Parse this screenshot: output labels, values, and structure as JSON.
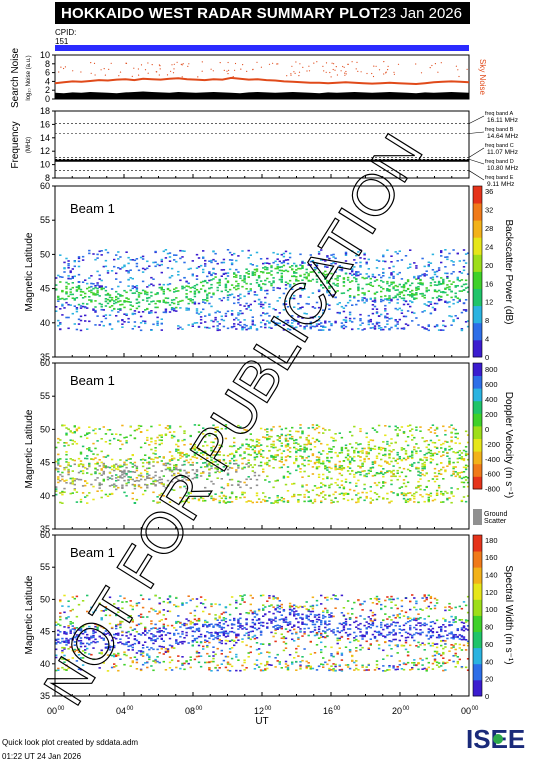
{
  "header": {
    "title": "HOKKAIDO WEST RADAR SUMMARY PLOT",
    "date": "23 Jan 2026"
  },
  "cpid": {
    "label": "CPID:",
    "value": "151",
    "bar_color": "#2b2bff"
  },
  "watermark": "NOT FOR PUBLICATION",
  "footer": {
    "credit": "Quick look plot created by sddata.adm",
    "timestamp": "01:22 UT 24 Jan 2026"
  },
  "logo_text": "ISEE",
  "chart_data": [
    {
      "type": "line",
      "ylabel_top": "Search Noise",
      "ylabel_sub": "log₁₀ Noise (a.u.)",
      "right_label": "Sky Noise",
      "ylim": [
        0,
        10
      ],
      "yticks": [
        "0",
        "2",
        "4",
        "6",
        "8",
        "10"
      ],
      "series": [
        {
          "color": "#000000",
          "values": [
            1.4,
            1.3,
            1.5,
            1.4,
            1.6,
            1.5,
            1.4,
            1.3,
            1.5,
            1.6,
            1.7,
            1.6,
            1.5,
            1.4,
            1.6,
            1.5,
            1.4,
            1.5,
            1.6,
            1.5,
            1.4,
            1.3,
            1.5,
            1.6,
            1.5,
            1.4,
            1.5,
            1.6,
            1.5,
            1.4,
            1.3,
            1.5,
            1.4,
            1.5,
            1.6,
            1.5,
            1.4,
            1.5,
            1.6,
            1.5,
            1.4,
            1.3,
            1.5,
            1.4,
            1.5,
            1.6,
            1.5,
            1.4
          ]
        },
        {
          "name": "Sky Noise",
          "color": "#e04a1a",
          "values": [
            3.6,
            3.8,
            4.0,
            3.9,
            4.1,
            4.3,
            4.2,
            4.4,
            4.5,
            4.3,
            4.6,
            4.5,
            4.4,
            4.6,
            4.7,
            4.5,
            4.4,
            4.3,
            4.5,
            4.4,
            4.8,
            4.6,
            4.4,
            4.5,
            4.3,
            4.2,
            4.0,
            3.9,
            3.8,
            3.7,
            3.7,
            3.6,
            3.7,
            3.8,
            3.7,
            3.6,
            3.5,
            3.6,
            3.7,
            3.6,
            3.5,
            3.4,
            3.6,
            3.8,
            3.9,
            4.0,
            3.9,
            3.8
          ]
        }
      ]
    },
    {
      "type": "line",
      "ylabel_top": "Frequency",
      "ylabel_sub": "(MHz)",
      "ylim": [
        8,
        18
      ],
      "yticks": [
        "8",
        "10",
        "12",
        "14",
        "16",
        "18"
      ],
      "series": [
        {
          "color": "#000000",
          "values": [
            10.6,
            10.6,
            10.6,
            10.6,
            10.6,
            10.6,
            10.6,
            10.6,
            10.6,
            10.6,
            10.6,
            10.6
          ]
        }
      ],
      "bands": [
        {
          "label": "freq band A",
          "value": "16.11 MHz",
          "mhz": 16.11
        },
        {
          "label": "freq band B",
          "value": "14.64 MHz",
          "mhz": 14.64
        },
        {
          "label": "freq band C",
          "value": "11.07 MHz",
          "mhz": 11.07
        },
        {
          "label": "freq band D",
          "value": "10.80 MHz",
          "mhz": 10.8
        },
        {
          "label": "freq band E",
          "value": "9.11 MHz",
          "mhz": 9.11
        }
      ]
    },
    {
      "type": "heatmap",
      "beam_label": "Beam  1",
      "ylabel": "Magnetic Latitude",
      "ylim": [
        35,
        60
      ],
      "yticks": [
        "35",
        "40",
        "45",
        "50",
        "55",
        "60"
      ],
      "colorbar_label": "Backscatter Power (dB)",
      "colorbar_ticks": [
        "0",
        "4",
        "8",
        "12",
        "16",
        "20",
        "24",
        "28",
        "32",
        "36"
      ],
      "colors": [
        "#3b1ccf",
        "#2d6ee8",
        "#2bb3e0",
        "#20c46a",
        "#3fd12a",
        "#9ede1a",
        "#e6e61a",
        "#f2b21a",
        "#f07a1a",
        "#e5331a"
      ],
      "main_band": [
        44.8,
        44.2,
        43.8,
        43.5,
        43.4,
        43.5,
        43.8,
        44.2,
        44.8,
        45.4,
        46.0,
        46.5,
        47.0,
        47.2,
        47.0,
        46.5,
        45.8,
        45.4,
        45.2,
        45.1,
        45.0,
        45.1,
        45.2,
        45.0
      ]
    },
    {
      "type": "heatmap",
      "beam_label": "Beam  1",
      "ylabel": "Magnetic Latitude",
      "ylim": [
        35,
        60
      ],
      "yticks": [
        "35",
        "40",
        "45",
        "50",
        "55",
        "60"
      ],
      "colorbar_label": "Doppler Velocity (m s⁻¹)",
      "colorbar_ticks": [
        "800",
        "600",
        "400",
        "200",
        "0",
        "-200",
        "-400",
        "-600",
        "-800"
      ],
      "colors": [
        "#3b1ccf",
        "#2d6ee8",
        "#2bb3e0",
        "#20c46a",
        "#3fd12a",
        "#9ede1a",
        "#e6e61a",
        "#f2b21a",
        "#f07a1a",
        "#e5331a"
      ],
      "ground_scatter_label": "Ground Scatter",
      "ground_scatter_color": "#909090",
      "main_band": [
        44.0,
        43.8,
        43.5,
        43.4,
        43.5,
        43.8,
        44.2,
        44.6,
        45.0,
        45.6,
        46.2,
        46.6,
        47.0,
        47.2,
        47.0,
        46.5,
        45.8,
        45.4,
        45.2,
        45.1,
        45.0,
        45.1,
        45.2,
        45.0
      ]
    },
    {
      "type": "heatmap",
      "beam_label": "Beam  1",
      "ylabel": "Magnetic Latitude",
      "ylim": [
        35,
        60
      ],
      "yticks": [
        "35",
        "40",
        "45",
        "50",
        "55",
        "60"
      ],
      "xlabel": "UT",
      "xticks": [
        "00",
        "04",
        "08",
        "12",
        "16",
        "20",
        "00"
      ],
      "colorbar_label": "Spectral Width (m s⁻¹)",
      "colorbar_ticks": [
        "0",
        "20",
        "40",
        "60",
        "80",
        "100",
        "120",
        "140",
        "160",
        "180"
      ],
      "colors": [
        "#3b1ccf",
        "#2d6ee8",
        "#2bb3e0",
        "#20c46a",
        "#3fd12a",
        "#9ede1a",
        "#e6e61a",
        "#f2b21a",
        "#f07a1a",
        "#e5331a"
      ],
      "main_band": [
        44.5,
        44.0,
        43.8,
        43.5,
        43.5,
        43.8,
        44.2,
        44.6,
        45.0,
        45.4,
        45.8,
        46.4,
        47.0,
        47.2,
        47.0,
        46.5,
        45.8,
        45.4,
        45.2,
        45.1,
        45.0,
        45.1,
        45.2,
        45.0
      ]
    }
  ]
}
